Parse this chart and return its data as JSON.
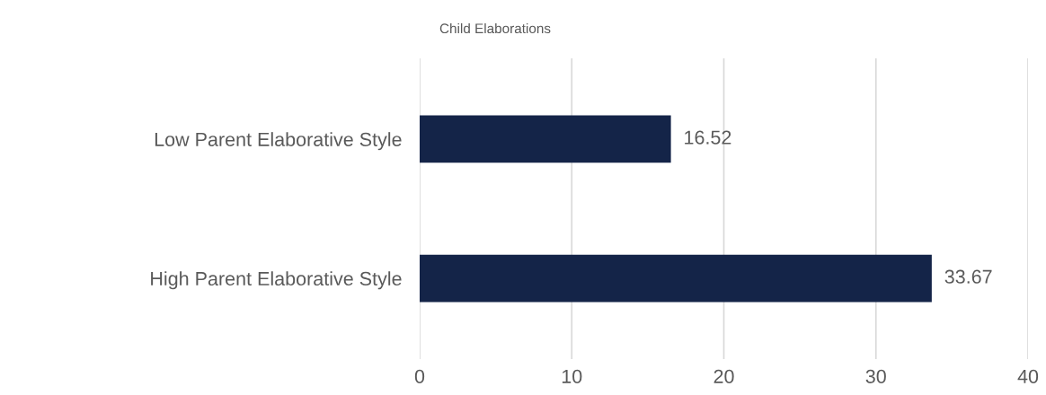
{
  "chart_data": {
    "type": "bar",
    "orientation": "horizontal",
    "title": "Child Elaborations",
    "categories": [
      "Low Parent Elaborative Style",
      "High Parent Elaborative Style"
    ],
    "values": [
      16.52,
      33.67
    ],
    "color": "#142448",
    "xlim": [
      0,
      40
    ],
    "xticks": [
      0,
      10,
      20,
      30,
      40
    ],
    "grid": "x",
    "data_labels": true
  }
}
